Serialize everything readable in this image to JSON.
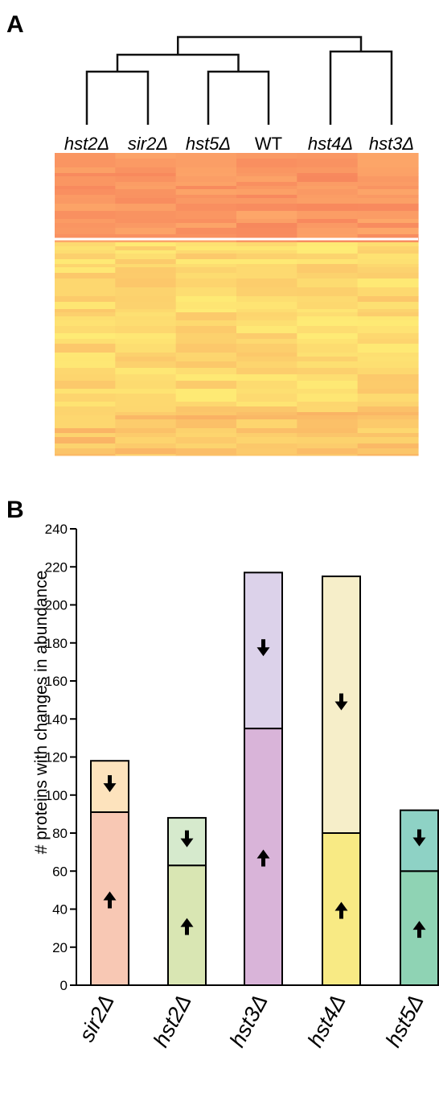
{
  "panel_a": {
    "letter": "A",
    "leaf_order": [
      "hst2Δ",
      "sir2Δ",
      "hst5Δ",
      "WT",
      "hst4Δ",
      "hst3Δ"
    ],
    "heatmap_colors": {
      "high": "#f5855a",
      "low": "#fff67a"
    }
  },
  "panel_b": {
    "letter": "B"
  },
  "chart_data": [
    {
      "type": "heatmap",
      "columns": [
        "hst2Δ",
        "sir2Δ",
        "hst5Δ",
        "WT",
        "hst4Δ",
        "hst3Δ"
      ],
      "dendrogram": [
        [
          "hst2Δ",
          "sir2Δ"
        ],
        [
          "hst5Δ",
          "WT"
        ],
        [
          "hst4Δ",
          "hst3Δ"
        ]
      ],
      "clusters": [
        "higher abundance (orange)",
        "lower abundance (yellow)"
      ]
    },
    {
      "type": "bar",
      "stacked": true,
      "categories": [
        "sir2Δ",
        "hst2Δ",
        "hst3Δ",
        "hst4Δ",
        "hst5Δ"
      ],
      "series": [
        {
          "direction": "up",
          "values": [
            91,
            63,
            135,
            80,
            60
          ],
          "colors": [
            "#f8c8b4",
            "#d9e6b3",
            "#d9b4d9",
            "#f8ea84",
            "#8fd3b4"
          ]
        },
        {
          "direction": "down",
          "values": [
            27,
            25,
            82,
            135,
            32
          ],
          "colors": [
            "#fde3bd",
            "#d6eacd",
            "#dcd2ea",
            "#f6eec9",
            "#8ed2c5"
          ]
        }
      ],
      "totals": [
        118,
        88,
        217,
        215,
        92
      ],
      "ylabel": "# proteins with changes in abundance",
      "ylim": [
        0,
        240
      ],
      "yticks": [
        0,
        20,
        40,
        60,
        80,
        100,
        120,
        140,
        160,
        180,
        200,
        220,
        240
      ]
    }
  ]
}
